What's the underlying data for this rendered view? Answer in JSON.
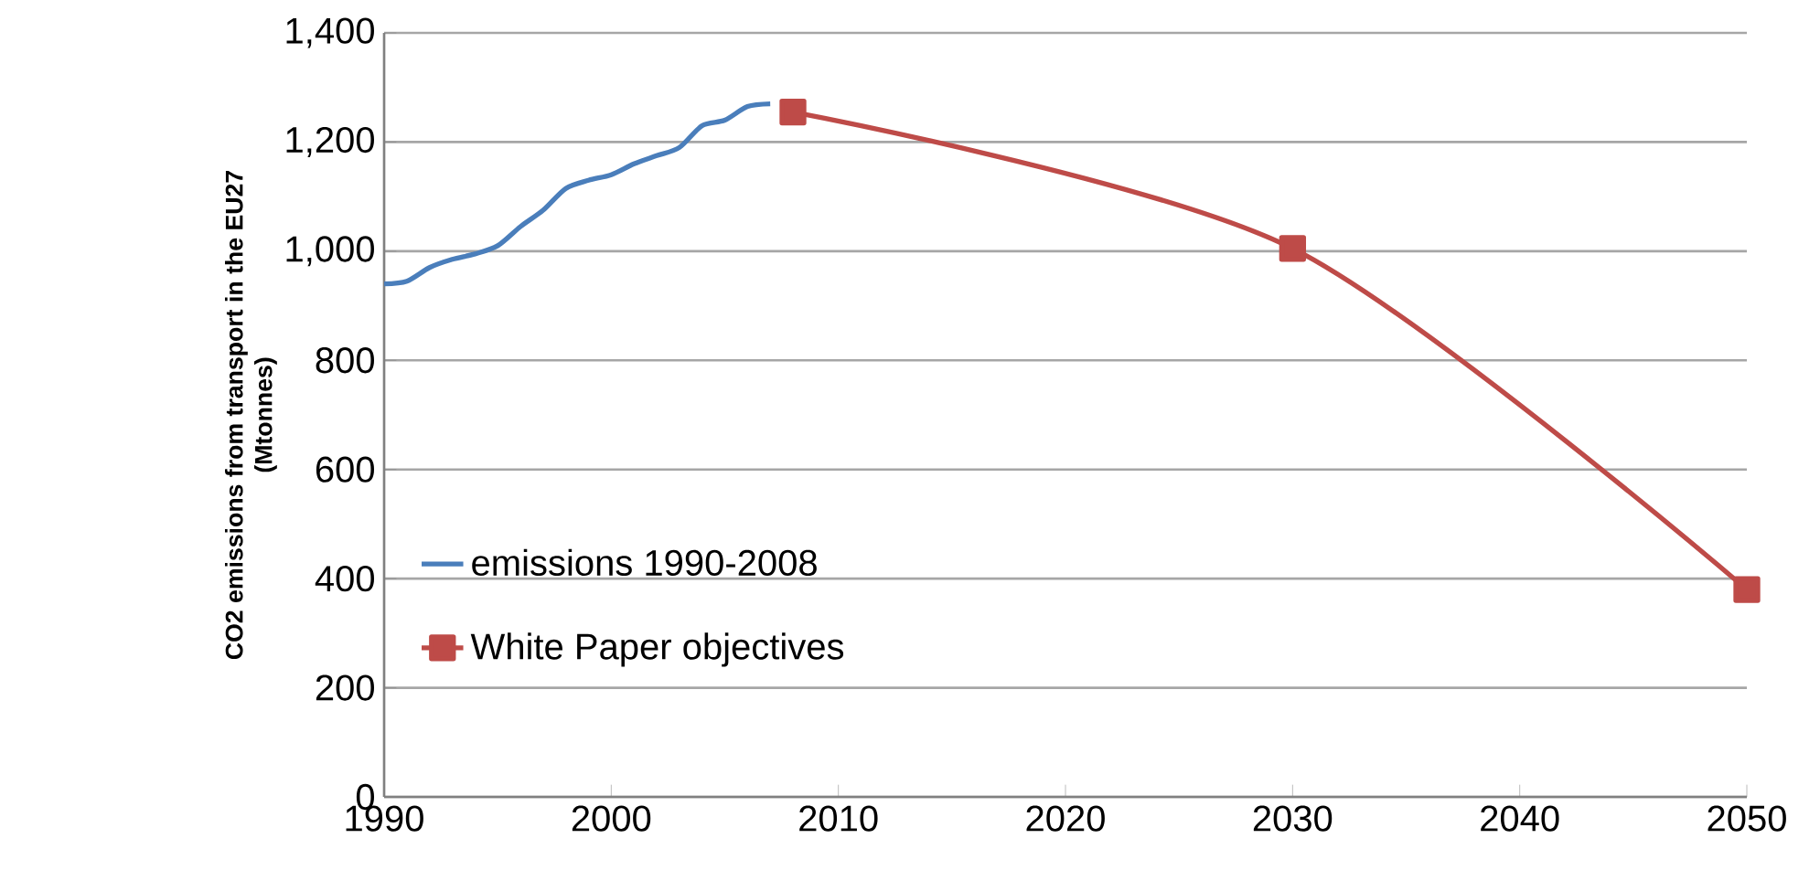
{
  "chart_data": {
    "type": "line",
    "ylabel": "CO2 emissions from transport in the EU27  (Mtonnes)",
    "xlim": [
      1990,
      2050
    ],
    "xticks": [
      1990,
      2000,
      2010,
      2020,
      2030,
      2040,
      2050
    ],
    "ylim": [
      0,
      1400
    ],
    "yticks": [
      {
        "value": 0,
        "label": "0"
      },
      {
        "value": 200,
        "label": "200"
      },
      {
        "value": 400,
        "label": "400"
      },
      {
        "value": 600,
        "label": "600"
      },
      {
        "value": 800,
        "label": "800"
      },
      {
        "value": 1000,
        "label": "1,000"
      },
      {
        "value": 1200,
        "label": "1,200"
      },
      {
        "value": 1400,
        "label": "1,400"
      }
    ],
    "grid": "y",
    "legend": "left",
    "series": [
      {
        "name": "emissions 1990-2008",
        "color": "#4a7ebb",
        "marker": "none",
        "x": [
          1990,
          1991,
          1992,
          1993,
          1994,
          1995,
          1996,
          1997,
          1998,
          1999,
          2000,
          2001,
          2002,
          2003,
          2004,
          2005,
          2006,
          2007
        ],
        "values": [
          940,
          945,
          970,
          985,
          995,
          1010,
          1045,
          1075,
          1115,
          1130,
          1140,
          1160,
          1175,
          1190,
          1230,
          1240,
          1265,
          1270
        ]
      },
      {
        "name": "White Paper objectives",
        "color": "#be4b48",
        "marker": "square",
        "x": [
          2008,
          2030,
          2050
        ],
        "values": [
          1255,
          1005,
          380
        ]
      }
    ]
  }
}
